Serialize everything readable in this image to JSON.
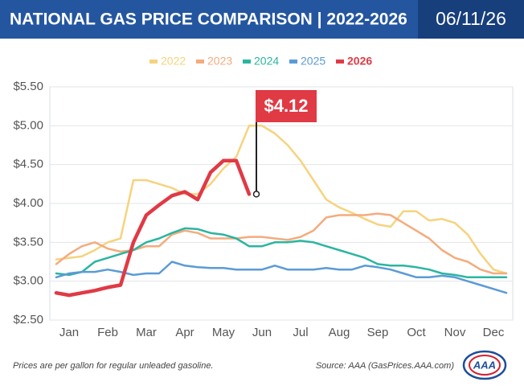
{
  "chart_data": {
    "type": "line",
    "title": "NATIONAL GAS PRICE COMPARISON | 2022-2026",
    "date": "06/11/26",
    "footnote": "Prices are per gallon for regular unleaded gasoline.",
    "source": "Source: AAA (GasPrices.AAA.com)",
    "logo": "AAA",
    "categories": [
      null,
      "Jan",
      null,
      null,
      "Feb",
      null,
      null,
      "Mar",
      null,
      null,
      "Apr",
      null,
      null,
      "May",
      null,
      null,
      "Jun",
      null,
      null,
      "Jul",
      null,
      null,
      "Aug",
      null,
      null,
      "Sep",
      null,
      null,
      "Oct",
      null,
      null,
      "Nov",
      null,
      null,
      "Dec",
      null
    ],
    "ylim": [
      2.5,
      5.5
    ],
    "yticks": [
      {
        "value": 2.5,
        "label": "$2.50"
      },
      {
        "value": 3.0,
        "label": "$3.00"
      },
      {
        "value": 3.5,
        "label": "$3.50"
      },
      {
        "value": 4.0,
        "label": "$4.00"
      },
      {
        "value": 4.5,
        "label": "$4.50"
      },
      {
        "value": 5.0,
        "label": "$5.00"
      },
      {
        "value": 5.5,
        "label": "$5.50"
      }
    ],
    "grid": true,
    "series": [
      {
        "name": "2022",
        "color": "#f6d37e",
        "values": [
          3.28,
          3.3,
          3.32,
          3.4,
          3.5,
          3.55,
          4.3,
          4.3,
          4.25,
          4.2,
          4.12,
          4.12,
          4.25,
          4.45,
          4.6,
          5.0,
          5.0,
          4.9,
          4.75,
          4.55,
          4.3,
          4.05,
          3.95,
          3.88,
          3.8,
          3.73,
          3.7,
          3.9,
          3.9,
          3.78,
          3.8,
          3.75,
          3.6,
          3.35,
          3.15,
          3.1
        ]
      },
      {
        "name": "2023",
        "color": "#f4ab7e",
        "values": [
          3.22,
          3.35,
          3.45,
          3.5,
          3.42,
          3.38,
          3.4,
          3.45,
          3.45,
          3.6,
          3.65,
          3.62,
          3.55,
          3.55,
          3.55,
          3.57,
          3.57,
          3.55,
          3.53,
          3.57,
          3.65,
          3.82,
          3.85,
          3.85,
          3.85,
          3.87,
          3.85,
          3.75,
          3.65,
          3.55,
          3.4,
          3.3,
          3.25,
          3.15,
          3.1,
          3.1
        ]
      },
      {
        "name": "2024",
        "color": "#2bb5a0",
        "values": [
          3.1,
          3.08,
          3.12,
          3.25,
          3.3,
          3.35,
          3.4,
          3.5,
          3.55,
          3.62,
          3.68,
          3.67,
          3.62,
          3.6,
          3.55,
          3.45,
          3.45,
          3.5,
          3.5,
          3.52,
          3.5,
          3.45,
          3.4,
          3.35,
          3.3,
          3.22,
          3.2,
          3.2,
          3.18,
          3.15,
          3.1,
          3.08,
          3.05,
          3.05,
          3.05,
          3.05
        ]
      },
      {
        "name": "2025",
        "color": "#5b9bd5",
        "values": [
          3.05,
          3.1,
          3.12,
          3.12,
          3.15,
          3.12,
          3.08,
          3.1,
          3.1,
          3.25,
          3.2,
          3.18,
          3.17,
          3.17,
          3.15,
          3.15,
          3.15,
          3.2,
          3.15,
          3.15,
          3.15,
          3.17,
          3.15,
          3.15,
          3.2,
          3.18,
          3.15,
          3.1,
          3.05,
          3.05,
          3.07,
          3.05,
          3.0,
          2.95,
          2.9,
          2.85
        ]
      },
      {
        "name": "2026",
        "color": "#e03a45",
        "values": [
          2.85,
          2.82,
          2.85,
          2.88,
          2.92,
          2.95,
          3.5,
          3.85,
          3.98,
          4.1,
          4.15,
          4.05,
          4.4,
          4.55,
          4.55,
          4.12,
          null,
          null,
          null,
          null,
          null,
          null,
          null,
          null,
          null,
          null,
          null,
          null,
          null,
          null,
          null,
          null,
          null,
          null,
          null,
          null
        ],
        "value_labels": [
          null,
          null,
          null,
          null,
          null,
          null,
          null,
          null,
          null,
          null,
          null,
          null,
          null,
          null,
          null,
          "$4.12",
          null,
          null,
          null,
          null,
          null,
          null,
          null,
          null,
          null,
          null,
          null,
          null,
          null,
          null,
          null,
          null,
          null,
          null,
          null,
          null
        ]
      }
    ]
  }
}
